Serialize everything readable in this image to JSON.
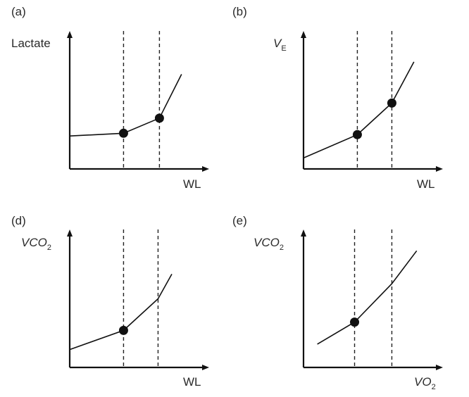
{
  "panels": [
    {
      "id": "a",
      "label": "(a)",
      "y_axis": {
        "label": "Lactate",
        "italic": false,
        "subscript": ""
      },
      "x_axis": {
        "label": "WL",
        "italic": false,
        "subscript": ""
      },
      "curve": [
        [
          0.0,
          0.24
        ],
        [
          0.39,
          0.26
        ],
        [
          0.65,
          0.37
        ],
        [
          0.81,
          0.69
        ]
      ],
      "thresholds": [
        0.39,
        0.65
      ],
      "dots": [
        [
          0.39,
          0.26
        ],
        [
          0.65,
          0.37
        ]
      ]
    },
    {
      "id": "b",
      "label": "(b)",
      "y_axis": {
        "label": "V",
        "italic": true,
        "subscript": "E"
      },
      "x_axis": {
        "label": "WL",
        "italic": false,
        "subscript": ""
      },
      "curve": [
        [
          0.0,
          0.08
        ],
        [
          0.39,
          0.25
        ],
        [
          0.64,
          0.48
        ],
        [
          0.8,
          0.78
        ]
      ],
      "thresholds": [
        0.39,
        0.64
      ],
      "dots": [
        [
          0.39,
          0.25
        ],
        [
          0.64,
          0.48
        ]
      ]
    },
    {
      "id": "d",
      "label": "(d)",
      "y_axis": {
        "label": "VCO",
        "italic": true,
        "subscript": "2"
      },
      "x_axis": {
        "label": "WL",
        "italic": false,
        "subscript": ""
      },
      "curve": [
        [
          0.0,
          0.13
        ],
        [
          0.39,
          0.27
        ],
        [
          0.64,
          0.5
        ],
        [
          0.74,
          0.68
        ]
      ],
      "thresholds": [
        0.39,
        0.64
      ],
      "dots": [
        [
          0.39,
          0.27
        ]
      ]
    },
    {
      "id": "e",
      "label": "(e)",
      "y_axis": {
        "label": "VCO",
        "italic": true,
        "subscript": "2"
      },
      "x_axis": {
        "label": "VO",
        "italic": true,
        "subscript": "2"
      },
      "curve": [
        [
          0.1,
          0.17
        ],
        [
          0.37,
          0.33
        ],
        [
          0.64,
          0.61
        ],
        [
          0.82,
          0.85
        ]
      ],
      "thresholds": [
        0.37,
        0.64
      ],
      "dots": [
        [
          0.37,
          0.33
        ]
      ]
    }
  ]
}
